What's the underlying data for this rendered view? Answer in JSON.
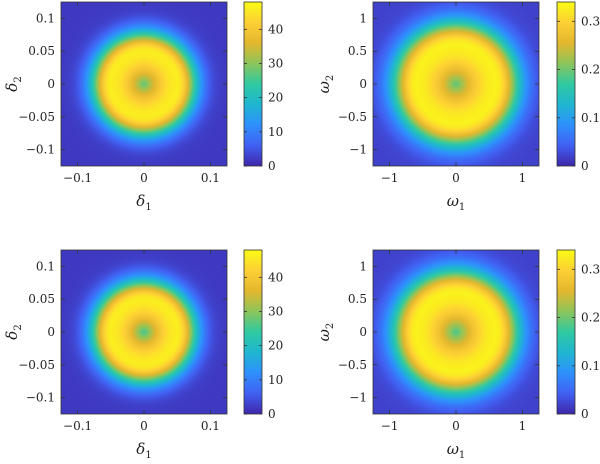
{
  "chart_data": [
    {
      "type": "heatmap",
      "title": "",
      "x_symbol": "δ",
      "x_sub": "1",
      "y_symbol": "δ",
      "y_sub": "2",
      "xlim": [
        -0.125,
        0.125
      ],
      "ylim": [
        -0.125,
        0.125
      ],
      "xticks": [
        -0.1,
        0,
        0.1
      ],
      "xtick_labels": [
        "−0.1",
        "0",
        "0.1"
      ],
      "yticks": [
        -0.1,
        -0.05,
        0,
        0.05,
        0.1
      ],
      "ytick_labels": [
        "−0.1",
        "−0.05",
        "0",
        "0.05",
        "0.1"
      ],
      "colorbar": {
        "range": [
          0,
          48
        ],
        "ticks": [
          0,
          10,
          20,
          30,
          40
        ],
        "tick_labels": [
          "0",
          "10",
          "20",
          "30",
          "40"
        ]
      },
      "field": {
        "shape": "ring",
        "peak_radius": 0.05,
        "center_value": 27,
        "peak_value": 46,
        "edge_value": 2
      },
      "colormap": [
        "#3e26a8",
        "#4160f2",
        "#2e90fd",
        "#1fb6d0",
        "#30c9a1",
        "#8cc55a",
        "#e3b72e",
        "#fdd035",
        "#f9fb15"
      ]
    },
    {
      "type": "heatmap",
      "title": "",
      "x_symbol": "ω",
      "x_sub": "1",
      "y_symbol": "ω",
      "y_sub": "2",
      "xlim": [
        -1.25,
        1.25
      ],
      "ylim": [
        -1.25,
        1.25
      ],
      "xticks": [
        -1,
        0,
        1
      ],
      "xtick_labels": [
        "−1",
        "0",
        "1"
      ],
      "yticks": [
        -1,
        -0.5,
        0,
        0.5,
        1
      ],
      "ytick_labels": [
        "−1",
        "−0.5",
        "0",
        "0.5",
        "1"
      ],
      "colorbar": {
        "range": [
          0,
          0.34
        ],
        "ticks": [
          0,
          0.1,
          0.2,
          0.3
        ],
        "tick_labels": [
          "0",
          "0.1",
          "0.2",
          "0.3"
        ]
      },
      "field": {
        "shape": "ring",
        "peak_radius": 0.6,
        "center_value": 0.19,
        "peak_value": 0.33,
        "edge_value": 0.02
      },
      "colormap": [
        "#3e26a8",
        "#4160f2",
        "#2e90fd",
        "#1fb6d0",
        "#30c9a1",
        "#8cc55a",
        "#e3b72e",
        "#fdd035",
        "#f9fb15"
      ]
    },
    {
      "type": "heatmap",
      "title": "",
      "x_symbol": "δ",
      "x_sub": "1",
      "y_symbol": "δ",
      "y_sub": "2",
      "xlim": [
        -0.125,
        0.125
      ],
      "ylim": [
        -0.125,
        0.125
      ],
      "xticks": [
        -0.1,
        0,
        0.1
      ],
      "xtick_labels": [
        "−0.1",
        "0",
        "0.1"
      ],
      "yticks": [
        -0.1,
        -0.05,
        0,
        0.05,
        0.1
      ],
      "ytick_labels": [
        "−0.1",
        "−0.05",
        "0",
        "0.05",
        "0.1"
      ],
      "colorbar": {
        "range": [
          0,
          48
        ],
        "ticks": [
          0,
          10,
          20,
          30,
          40
        ],
        "tick_labels": [
          "0",
          "10",
          "20",
          "30",
          "40"
        ]
      },
      "field": {
        "shape": "ring",
        "peak_radius": 0.05,
        "center_value": 25,
        "peak_value": 46,
        "edge_value": 2
      },
      "colormap": [
        "#3e26a8",
        "#4160f2",
        "#2e90fd",
        "#1fb6d0",
        "#30c9a1",
        "#8cc55a",
        "#e3b72e",
        "#fdd035",
        "#f9fb15"
      ]
    },
    {
      "type": "heatmap",
      "title": "",
      "x_symbol": "ω",
      "x_sub": "1",
      "y_symbol": "ω",
      "y_sub": "2",
      "xlim": [
        -1.25,
        1.25
      ],
      "ylim": [
        -1.25,
        1.25
      ],
      "xticks": [
        -1,
        0,
        1
      ],
      "xtick_labels": [
        "−1",
        "0",
        "1"
      ],
      "yticks": [
        -1,
        -0.5,
        0,
        0.5,
        1
      ],
      "ytick_labels": [
        "−1",
        "−0.5",
        "0",
        "0.5",
        "1"
      ],
      "colorbar": {
        "range": [
          0,
          0.34
        ],
        "ticks": [
          0,
          0.1,
          0.2,
          0.3
        ],
        "tick_labels": [
          "0",
          "0.1",
          "0.2",
          "0.3"
        ]
      },
      "field": {
        "shape": "ring",
        "peak_radius": 0.6,
        "center_value": 0.18,
        "peak_value": 0.33,
        "edge_value": 0.02
      },
      "colormap": [
        "#3e26a8",
        "#4160f2",
        "#2e90fd",
        "#1fb6d0",
        "#30c9a1",
        "#8cc55a",
        "#e3b72e",
        "#fdd035",
        "#f9fb15"
      ]
    }
  ]
}
